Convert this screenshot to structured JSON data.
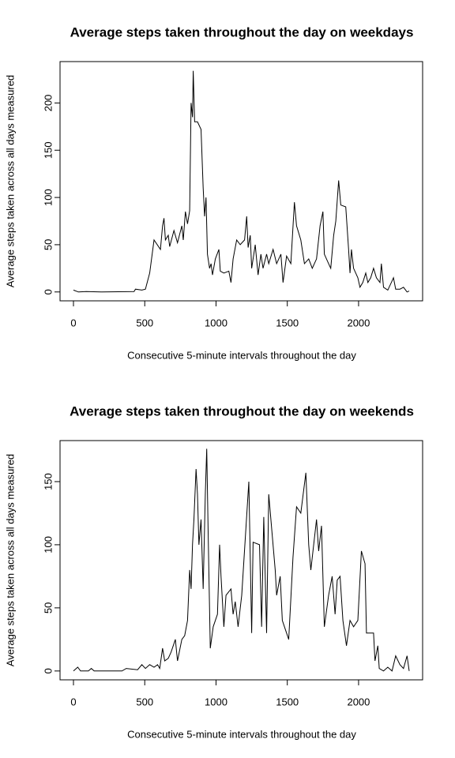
{
  "chart_data": [
    {
      "type": "line",
      "title": "Average steps taken throughout the day on weekdays",
      "x_label": "Consecutive 5-minute intervals throughout the day",
      "y_label": "Average steps taken across all days measured",
      "color": "#000000",
      "x": [
        0,
        35,
        90,
        200,
        425,
        435,
        480,
        505,
        535,
        565,
        610,
        625,
        635,
        645,
        665,
        675,
        705,
        730,
        760,
        770,
        785,
        800,
        815,
        825,
        835,
        840,
        850,
        870,
        895,
        910,
        920,
        930,
        940,
        955,
        965,
        975,
        995,
        1020,
        1030,
        1055,
        1090,
        1105,
        1120,
        1145,
        1170,
        1200,
        1215,
        1225,
        1240,
        1250,
        1275,
        1295,
        1315,
        1330,
        1355,
        1370,
        1400,
        1425,
        1455,
        1470,
        1495,
        1525,
        1550,
        1565,
        1595,
        1620,
        1650,
        1675,
        1705,
        1730,
        1750,
        1760,
        1790,
        1805,
        1825,
        1840,
        1860,
        1875,
        1910,
        1930,
        1940,
        1950,
        1965,
        1995,
        2010,
        2030,
        2050,
        2065,
        2085,
        2105,
        2125,
        2150,
        2160,
        2175,
        2205,
        2230,
        2245,
        2260,
        2290,
        2315,
        2340,
        2355
      ],
      "values": [
        2,
        0,
        0.5,
        0,
        0.5,
        3,
        2,
        3,
        20,
        55,
        45,
        70,
        78,
        55,
        60,
        48,
        65,
        52,
        70,
        55,
        85,
        72,
        86,
        200,
        185,
        234,
        180,
        180,
        172,
        110,
        80,
        100,
        40,
        25,
        30,
        18,
        35,
        45,
        22,
        20,
        22,
        10,
        35,
        55,
        50,
        55,
        80,
        47,
        60,
        25,
        50,
        18,
        40,
        25,
        40,
        30,
        45,
        30,
        40,
        10,
        38,
        30,
        95,
        70,
        55,
        30,
        35,
        25,
        35,
        70,
        85,
        40,
        30,
        25,
        60,
        75,
        118,
        92,
        90,
        45,
        20,
        45,
        25,
        15,
        5,
        10,
        20,
        10,
        15,
        25,
        15,
        10,
        30,
        5,
        2,
        10,
        15,
        3,
        3,
        5,
        0,
        1
      ],
      "xlim": [
        -94.2,
        2449.2
      ],
      "xticks": [
        0,
        500,
        1000,
        1500,
        2000
      ],
      "ylim": [
        -9.4,
        243.8
      ],
      "yticks": [
        0,
        50,
        100,
        150,
        200
      ]
    },
    {
      "type": "line",
      "title": "Average steps taken throughout the day on weekends",
      "x_label": "Consecutive 5-minute intervals throughout the day",
      "y_label": "Average steps taken across all days measured",
      "color": "#000000",
      "x": [
        0,
        30,
        50,
        105,
        125,
        145,
        340,
        370,
        450,
        480,
        505,
        535,
        565,
        590,
        605,
        625,
        640,
        665,
        685,
        715,
        730,
        760,
        780,
        800,
        815,
        825,
        835,
        845,
        860,
        870,
        880,
        895,
        910,
        925,
        935,
        945,
        960,
        980,
        1010,
        1025,
        1035,
        1055,
        1070,
        1105,
        1120,
        1135,
        1155,
        1180,
        1230,
        1250,
        1260,
        1305,
        1320,
        1335,
        1355,
        1370,
        1415,
        1425,
        1450,
        1465,
        1480,
        1510,
        1540,
        1565,
        1595,
        1630,
        1650,
        1665,
        1695,
        1705,
        1720,
        1740,
        1760,
        1790,
        1815,
        1835,
        1850,
        1870,
        1890,
        1915,
        1940,
        1965,
        1995,
        2020,
        2045,
        2055,
        2105,
        2115,
        2135,
        2145,
        2175,
        2205,
        2235,
        2260,
        2290,
        2315,
        2340,
        2355
      ],
      "values": [
        0,
        3,
        0,
        0,
        2,
        0,
        0,
        2,
        1,
        5,
        2,
        5,
        3,
        5,
        2,
        18,
        8,
        10,
        15,
        25,
        8,
        25,
        28,
        40,
        80,
        65,
        100,
        120,
        160,
        140,
        100,
        120,
        65,
        140,
        176,
        110,
        18,
        35,
        45,
        100,
        75,
        35,
        60,
        65,
        45,
        55,
        35,
        60,
        150,
        30,
        102,
        100,
        35,
        122,
        30,
        140,
        80,
        60,
        75,
        40,
        35,
        25,
        90,
        130,
        125,
        157,
        100,
        80,
        110,
        120,
        95,
        115,
        35,
        60,
        75,
        45,
        72,
        75,
        40,
        20,
        40,
        35,
        40,
        95,
        85,
        30,
        30,
        8,
        20,
        2,
        0,
        3,
        0,
        12,
        5,
        2,
        12,
        0
      ],
      "xlim": [
        -94.2,
        2449.2
      ],
      "xticks": [
        0,
        500,
        1000,
        1500,
        2000
      ],
      "ylim": [
        -7,
        182.5
      ],
      "yticks": [
        0,
        50,
        100,
        150
      ]
    }
  ]
}
